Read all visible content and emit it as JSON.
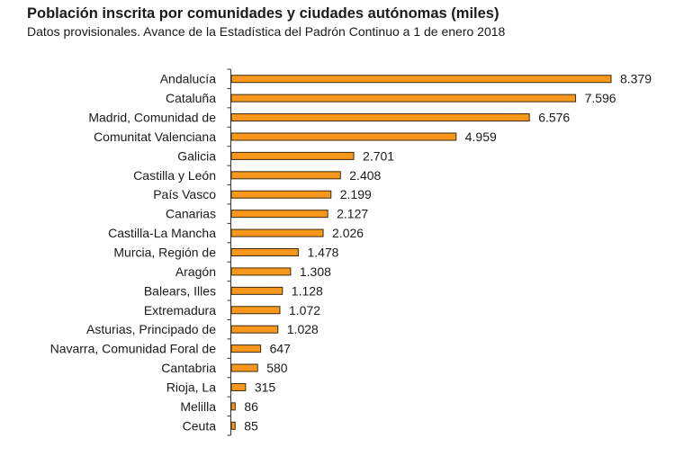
{
  "chart_data": {
    "type": "bar",
    "orientation": "horizontal",
    "title": "Población inscrita por comunidades y ciudades autónomas (miles)",
    "subtitle": "Datos provisionales. Avance de la Estadística del Padrón Continuo a 1 de enero 2018",
    "xlabel": "",
    "ylabel": "",
    "grid": false,
    "legend": "none",
    "bar_color": "#F7981D",
    "bar_edge_color": "#3a2a10",
    "xlim": [
      0,
      8379
    ],
    "categories": [
      "Andalucía",
      "Cataluña",
      "Madrid, Comunidad de",
      "Comunitat Valenciana",
      "Galicia",
      "Castilla y León",
      "País Vasco",
      "Canarias",
      "Castilla-La Mancha",
      "Murcia, Región de",
      "Aragón",
      "Balears, Illes",
      "Extremadura",
      "Asturias, Principado de",
      "Navarra, Comunidad Foral de",
      "Cantabria",
      "Rioja, La",
      "Melilla",
      "Ceuta"
    ],
    "values": [
      8379,
      7596,
      6576,
      4959,
      2701,
      2408,
      2199,
      2127,
      2026,
      1478,
      1308,
      1128,
      1072,
      1028,
      647,
      580,
      315,
      86,
      85
    ],
    "labels": [
      "8.379",
      "7.596",
      "6.576",
      "4.959",
      "2.701",
      "2.408",
      "2.199",
      "2.127",
      "2.026",
      "1.478",
      "1.308",
      "1.128",
      "1.072",
      "1.028",
      "647",
      "580",
      "315",
      "86",
      "85"
    ]
  }
}
